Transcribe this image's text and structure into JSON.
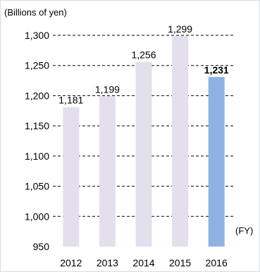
{
  "chart_data": {
    "type": "bar",
    "ylabel": "(Billions of yen)",
    "xlabel": "(FY)",
    "categories": [
      "2012",
      "2013",
      "2014",
      "2015",
      "2016"
    ],
    "values": [
      1181,
      1199,
      1256,
      1299,
      1231
    ],
    "value_labels": [
      "1,181",
      "1,199",
      "1,256",
      "1,299",
      "1,231"
    ],
    "highlight_index": 4,
    "ylim": [
      950,
      1300
    ],
    "yticks": [
      950,
      1000,
      1050,
      1100,
      1150,
      1200,
      1250,
      1300
    ],
    "ytick_labels": [
      "950",
      "1,000",
      "1,050",
      "1,100",
      "1,150",
      "1,200",
      "1,250",
      "1,300"
    ],
    "grid": "dashed horizontal",
    "legend": "none",
    "colors": {
      "bar": "#e3dfec",
      "highlight_bar": "#8eb3e3",
      "grid": "#000000",
      "frame": "#d4dcec"
    }
  }
}
